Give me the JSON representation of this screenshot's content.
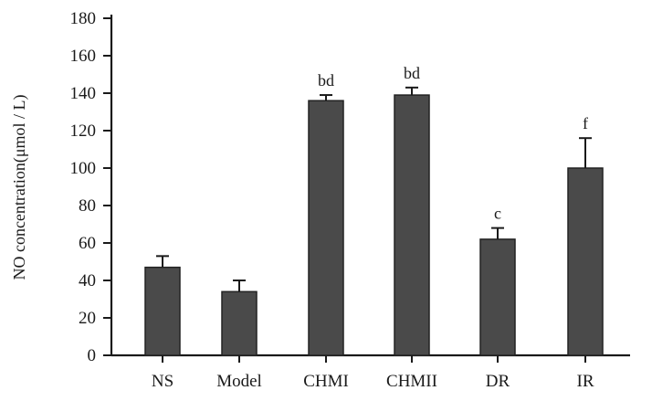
{
  "chart_data": {
    "type": "bar",
    "title": "",
    "xlabel": "",
    "ylabel": "NO concentration(μmol / L)",
    "ylim": [
      0,
      180
    ],
    "yticks": [
      0,
      20,
      40,
      60,
      80,
      100,
      120,
      140,
      160,
      180
    ],
    "grid": false,
    "categories": [
      "NS",
      "Model",
      "CHMI",
      "CHMII",
      "DR",
      "IR"
    ],
    "values": [
      47,
      34,
      136,
      139,
      62,
      100
    ],
    "errors": [
      6,
      6,
      3,
      4,
      6,
      16
    ],
    "annotations": [
      "",
      "",
      "bd",
      "bd",
      "c",
      "f"
    ],
    "bar_color": "#4a4a4a"
  }
}
